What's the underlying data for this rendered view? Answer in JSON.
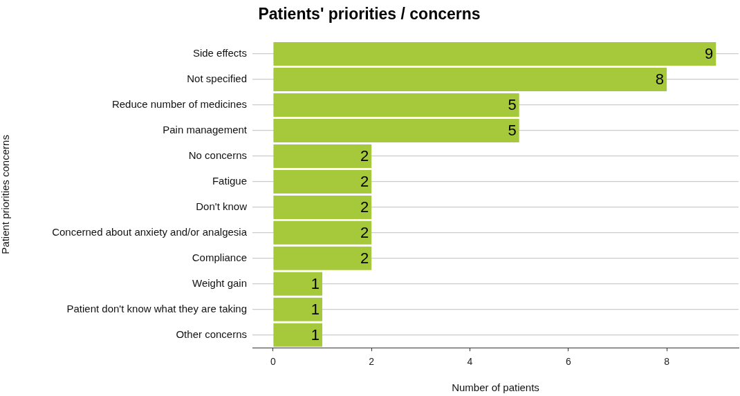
{
  "chart_data": {
    "type": "bar",
    "orientation": "horizontal",
    "title": "Patients' priorities / concerns",
    "xlabel": "Number of patients",
    "ylabel": "Patient priorities concerns",
    "categories": [
      "Side effects",
      "Not specified",
      "Reduce number of medicines",
      "Pain management",
      "No concerns",
      "Fatigue",
      "Don't know",
      "Concerned about anxiety and/or analgesia",
      "Compliance",
      "Weight gain",
      "Patient don't know what they are taking",
      "Other concerns"
    ],
    "values": [
      9,
      8,
      5,
      5,
      2,
      2,
      2,
      2,
      2,
      1,
      1,
      1
    ],
    "color": "#a5c93a",
    "xlim": [
      -0.42,
      9.46
    ],
    "xticks": [
      0,
      2,
      4,
      6,
      8
    ],
    "grid": "y",
    "legend": false,
    "data_labels": true
  }
}
